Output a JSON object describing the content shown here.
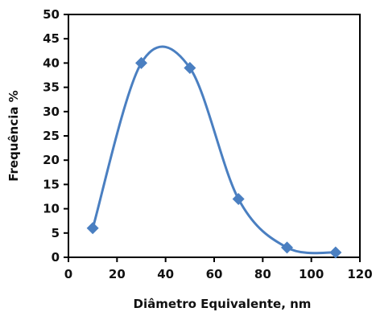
{
  "chart_data": {
    "type": "scatter",
    "title": "",
    "xlabel": "Diâmetro Equivalente, nm",
    "ylabel": "Frequência %",
    "xlim": [
      0,
      120
    ],
    "ylim": [
      0,
      50
    ],
    "xticks": [
      "0",
      "20",
      "40",
      "60",
      "80",
      "100",
      "120"
    ],
    "yticks": [
      "0",
      "5",
      "10",
      "15",
      "20",
      "25",
      "30",
      "35",
      "40",
      "45",
      "50"
    ],
    "grid": false,
    "legend": "none",
    "smooth_line": true,
    "series": [
      {
        "x": [
          10,
          30,
          50,
          70,
          90,
          110
        ],
        "y": [
          6,
          40,
          39,
          12,
          2,
          1
        ],
        "marker": "diamond",
        "color": "#4a7fc1"
      }
    ]
  }
}
